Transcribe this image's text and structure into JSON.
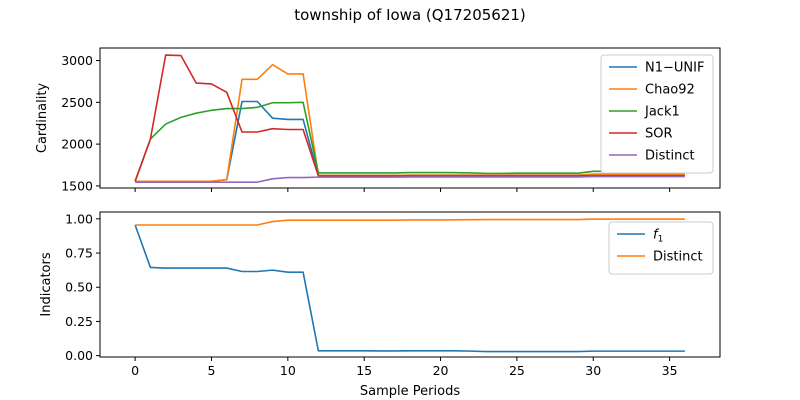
{
  "figure": {
    "title": "township of Iowa (Q17205621)"
  },
  "chart_data": [
    {
      "type": "line",
      "ylabel": "Cardinality",
      "xlabel": "",
      "xlim": [
        -2.3,
        38.3
      ],
      "ylim": [
        1475,
        3150
      ],
      "xticks": [
        0,
        5,
        10,
        15,
        20,
        25,
        30,
        35
      ],
      "yticks": [
        1500,
        2000,
        2500,
        3000
      ],
      "ytick_labels": [
        "1500",
        "2000",
        "2500",
        "3000"
      ],
      "show_xtick_labels": false,
      "legend": "top-right",
      "x": [
        0,
        1,
        2,
        3,
        4,
        5,
        6,
        7,
        8,
        9,
        10,
        11,
        12,
        13,
        14,
        15,
        16,
        17,
        18,
        19,
        20,
        21,
        22,
        23,
        24,
        25,
        26,
        27,
        28,
        29,
        30,
        31,
        32,
        33,
        34,
        35,
        36
      ],
      "series": [
        {
          "name": "N1−UNIF",
          "color": "#1f77b4",
          "values": [
            1555,
            1555,
            1555,
            1555,
            1555,
            1555,
            1575,
            2510,
            2510,
            2310,
            2295,
            2295,
            1625,
            1625,
            1625,
            1625,
            1625,
            1625,
            1628,
            1628,
            1628,
            1628,
            1628,
            1628,
            1628,
            1628,
            1628,
            1628,
            1628,
            1628,
            1640,
            1640,
            1640,
            1640,
            1640,
            1640,
            1640
          ]
        },
        {
          "name": "Chao92",
          "color": "#ff7f0e",
          "values": [
            1555,
            1555,
            1555,
            1555,
            1555,
            1555,
            1575,
            2775,
            2775,
            2950,
            2840,
            2840,
            1625,
            1625,
            1625,
            1625,
            1625,
            1625,
            1628,
            1628,
            1628,
            1628,
            1628,
            1628,
            1628,
            1628,
            1628,
            1628,
            1628,
            1628,
            1640,
            1640,
            1640,
            1640,
            1640,
            1640,
            1640
          ]
        },
        {
          "name": "Jack1",
          "color": "#2ca02c",
          "values": [
            1555,
            2060,
            2240,
            2320,
            2370,
            2405,
            2425,
            2425,
            2440,
            2495,
            2495,
            2500,
            1655,
            1655,
            1655,
            1655,
            1655,
            1655,
            1660,
            1660,
            1660,
            1658,
            1655,
            1650,
            1650,
            1652,
            1652,
            1652,
            1652,
            1652,
            1675,
            1675,
            1675,
            1675,
            1675,
            1675,
            1675
          ]
        },
        {
          "name": "SOR",
          "color": "#d62728",
          "values": [
            1555,
            2060,
            3065,
            3060,
            2730,
            2720,
            2620,
            2145,
            2145,
            2185,
            2175,
            2175,
            1620,
            1620,
            1620,
            1620,
            1620,
            1620,
            1620,
            1620,
            1620,
            1620,
            1620,
            1620,
            1620,
            1620,
            1620,
            1620,
            1620,
            1620,
            1622,
            1622,
            1622,
            1622,
            1622,
            1622,
            1622
          ]
        },
        {
          "name": "Distinct",
          "color": "#9467bd",
          "values": [
            1545,
            1545,
            1545,
            1545,
            1545,
            1545,
            1545,
            1545,
            1545,
            1585,
            1600,
            1600,
            1605,
            1605,
            1605,
            1605,
            1605,
            1605,
            1607,
            1607,
            1607,
            1607,
            1607,
            1607,
            1607,
            1607,
            1607,
            1607,
            1607,
            1607,
            1612,
            1612,
            1612,
            1612,
            1612,
            1612,
            1612
          ]
        }
      ]
    },
    {
      "type": "line",
      "ylabel": "Indicators",
      "xlabel": "Sample Periods",
      "xlim": [
        -2.3,
        38.3
      ],
      "ylim": [
        -0.01,
        1.05
      ],
      "xticks": [
        0,
        5,
        10,
        15,
        20,
        25,
        30,
        35
      ],
      "xtick_labels": [
        "0",
        "5",
        "10",
        "15",
        "20",
        "25",
        "30",
        "35"
      ],
      "yticks": [
        0.0,
        0.25,
        0.5,
        0.75,
        1.0
      ],
      "ytick_labels": [
        "0.00",
        "0.25",
        "0.50",
        "0.75",
        "1.00"
      ],
      "legend": "top-right",
      "x": [
        0,
        1,
        2,
        3,
        4,
        5,
        6,
        7,
        8,
        9,
        10,
        11,
        12,
        13,
        14,
        15,
        16,
        17,
        18,
        19,
        20,
        21,
        22,
        23,
        24,
        25,
        26,
        27,
        28,
        29,
        30,
        31,
        32,
        33,
        34,
        35,
        36
      ],
      "series": [
        {
          "name": "f1",
          "color": "#1f77b4",
          "values": [
            0.955,
            0.645,
            0.64,
            0.64,
            0.64,
            0.64,
            0.64,
            0.615,
            0.615,
            0.625,
            0.61,
            0.61,
            0.035,
            0.035,
            0.035,
            0.035,
            0.034,
            0.034,
            0.035,
            0.035,
            0.035,
            0.035,
            0.033,
            0.03,
            0.03,
            0.03,
            0.03,
            0.03,
            0.03,
            0.03,
            0.033,
            0.033,
            0.033,
            0.033,
            0.033,
            0.033,
            0.033
          ]
        },
        {
          "name": "Distinct",
          "color": "#ff7f0e",
          "values": [
            0.955,
            0.955,
            0.955,
            0.955,
            0.955,
            0.955,
            0.955,
            0.955,
            0.955,
            0.98,
            0.99,
            0.99,
            0.99,
            0.99,
            0.99,
            0.99,
            0.99,
            0.99,
            0.992,
            0.992,
            0.992,
            0.993,
            0.994,
            0.995,
            0.995,
            0.995,
            0.995,
            0.995,
            0.995,
            0.995,
            0.998,
            0.998,
            0.998,
            0.998,
            0.998,
            0.998,
            0.998
          ]
        }
      ]
    }
  ]
}
